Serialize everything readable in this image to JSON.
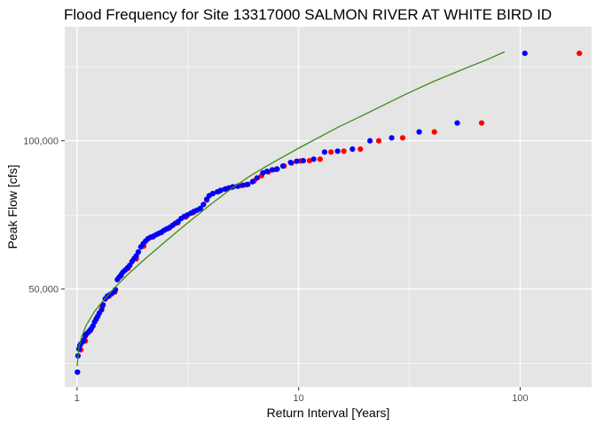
{
  "chart_data": {
    "type": "scatter",
    "title": "Flood Frequency for Site 13317000 SALMON RIVER AT WHITE BIRD ID",
    "xlabel": "Return Interval [Years]",
    "ylabel": "Peak Flow [cfs]",
    "x_scale": "log10",
    "xlim": [
      0.88,
      210
    ],
    "ylim": [
      17000,
      138500
    ],
    "x_ticks": [
      1,
      10,
      100
    ],
    "x_tick_labels": [
      "1",
      "10",
      "100"
    ],
    "y_ticks": [
      50000,
      100000
    ],
    "y_tick_labels": [
      "50,000",
      "100,000"
    ],
    "grid": true,
    "legend": "none",
    "colors": {
      "panel": "#e5e5e5",
      "grid": "#ffffff",
      "series_a": "#ff0000",
      "series_b": "#0000ff",
      "fit_line": "#3d8c1a"
    },
    "series": [
      {
        "color": "#ff0000",
        "points": [
          [
            185,
            129500
          ],
          [
            67,
            106000
          ],
          [
            41,
            103000
          ],
          [
            29.5,
            101000
          ],
          [
            23,
            100000
          ],
          [
            19,
            97200
          ],
          [
            16,
            96500
          ],
          [
            14,
            96200
          ],
          [
            12.5,
            93800
          ],
          [
            11.2,
            93300
          ],
          [
            10.2,
            93200
          ],
          [
            9.3,
            92500
          ],
          [
            8.6,
            91500
          ],
          [
            7.9,
            90300
          ],
          [
            7.3,
            89500
          ],
          [
            6.8,
            88200
          ],
          [
            6.3,
            86500
          ],
          [
            5.8,
            85200
          ],
          [
            5.4,
            84800
          ],
          [
            5.0,
            84300
          ],
          [
            4.7,
            83800
          ],
          [
            4.4,
            83000
          ],
          [
            4.1,
            82200
          ],
          [
            3.85,
            80000
          ],
          [
            3.6,
            77000
          ],
          [
            3.35,
            75800
          ],
          [
            3.1,
            74300
          ],
          [
            2.85,
            72300
          ],
          [
            2.6,
            70500
          ],
          [
            2.4,
            69000
          ],
          [
            2.2,
            67600
          ],
          [
            2.0,
            64500
          ],
          [
            1.85,
            60200
          ],
          [
            1.7,
            57000
          ],
          [
            1.58,
            54500
          ],
          [
            1.48,
            49000
          ],
          [
            1.39,
            47500
          ],
          [
            1.3,
            44000
          ],
          [
            1.22,
            40000
          ],
          [
            1.15,
            36000
          ],
          [
            1.09,
            32500
          ],
          [
            1.04,
            29500
          ],
          [
            1.005,
            22000
          ]
        ]
      },
      {
        "color": "#0000ff",
        "points": [
          [
            105,
            129500
          ],
          [
            52,
            106000
          ],
          [
            35,
            103000
          ],
          [
            26.3,
            101000
          ],
          [
            21,
            100000
          ],
          [
            17.5,
            97200
          ],
          [
            15,
            96500
          ],
          [
            13.1,
            96200
          ],
          [
            11.7,
            93800
          ],
          [
            10.5,
            93300
          ],
          [
            9.8,
            93100
          ],
          [
            9.2,
            92700
          ],
          [
            8.5,
            91500
          ],
          [
            8.0,
            90500
          ],
          [
            7.6,
            90200
          ],
          [
            7.2,
            89700
          ],
          [
            6.9,
            89200
          ],
          [
            6.5,
            87500
          ],
          [
            6.2,
            86200
          ],
          [
            5.9,
            85300
          ],
          [
            5.6,
            85000
          ],
          [
            5.3,
            84700
          ],
          [
            5.05,
            84500
          ],
          [
            4.85,
            84100
          ],
          [
            4.65,
            83700
          ],
          [
            4.45,
            83300
          ],
          [
            4.3,
            82800
          ],
          [
            4.1,
            82200
          ],
          [
            3.95,
            81500
          ],
          [
            3.85,
            80300
          ],
          [
            3.72,
            78500
          ],
          [
            3.6,
            77200
          ],
          [
            3.48,
            76600
          ],
          [
            3.37,
            76200
          ],
          [
            3.26,
            75600
          ],
          [
            3.15,
            75000
          ],
          [
            3.05,
            74500
          ],
          [
            2.95,
            73800
          ],
          [
            2.86,
            72800
          ],
          [
            2.78,
            72200
          ],
          [
            2.7,
            71500
          ],
          [
            2.62,
            70800
          ],
          [
            2.54,
            70300
          ],
          [
            2.47,
            69800
          ],
          [
            2.4,
            69200
          ],
          [
            2.33,
            68700
          ],
          [
            2.27,
            68300
          ],
          [
            2.21,
            67800
          ],
          [
            2.15,
            67500
          ],
          [
            2.09,
            67000
          ],
          [
            2.04,
            66200
          ],
          [
            1.99,
            65300
          ],
          [
            1.94,
            64200
          ],
          [
            1.89,
            62500
          ],
          [
            1.85,
            61200
          ],
          [
            1.81,
            60300
          ],
          [
            1.77,
            59300
          ],
          [
            1.73,
            58000
          ],
          [
            1.69,
            57200
          ],
          [
            1.65,
            56400
          ],
          [
            1.61,
            55700
          ],
          [
            1.58,
            54800
          ],
          [
            1.55,
            54000
          ],
          [
            1.52,
            53200
          ],
          [
            1.49,
            49800
          ],
          [
            1.46,
            49000
          ],
          [
            1.43,
            48400
          ],
          [
            1.4,
            48000
          ],
          [
            1.37,
            47600
          ],
          [
            1.34,
            46700
          ],
          [
            1.31,
            44700
          ],
          [
            1.29,
            43000
          ],
          [
            1.26,
            41900
          ],
          [
            1.24,
            40800
          ],
          [
            1.22,
            39800
          ],
          [
            1.2,
            38900
          ],
          [
            1.18,
            37600
          ],
          [
            1.16,
            36700
          ],
          [
            1.14,
            36000
          ],
          [
            1.12,
            35300
          ],
          [
            1.1,
            34800
          ],
          [
            1.09,
            34200
          ],
          [
            1.07,
            32700
          ],
          [
            1.06,
            32300
          ],
          [
            1.04,
            31500
          ],
          [
            1.03,
            31000
          ],
          [
            1.02,
            29800
          ],
          [
            1.01,
            27500
          ],
          [
            1.004,
            22000
          ]
        ]
      }
    ],
    "fit_line": {
      "color": "#3d8c1a",
      "points": [
        [
          1.0,
          24000
        ],
        [
          1.02,
          30500
        ],
        [
          1.05,
          34000
        ],
        [
          1.1,
          37800
        ],
        [
          1.2,
          42500
        ],
        [
          1.3,
          45700
        ],
        [
          1.5,
          51000
        ],
        [
          1.7,
          55000
        ],
        [
          2.0,
          59800
        ],
        [
          2.5,
          66000
        ],
        [
          3.0,
          71000
        ],
        [
          4.0,
          78500
        ],
        [
          5.0,
          84000
        ],
        [
          6.0,
          88000
        ],
        [
          7.0,
          91000
        ],
        [
          8.0,
          93500
        ],
        [
          10.0,
          97500
        ],
        [
          15.0,
          104500
        ],
        [
          20.0,
          109000
        ],
        [
          30.0,
          115500
        ],
        [
          40.0,
          119800
        ],
        [
          50.0,
          122800
        ],
        [
          60.0,
          125200
        ],
        [
          70.0,
          127200
        ],
        [
          85.0,
          130000
        ]
      ]
    }
  }
}
